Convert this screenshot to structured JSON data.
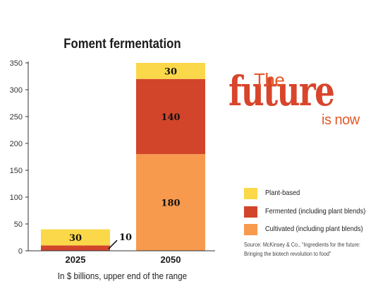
{
  "chart_data": {
    "type": "bar",
    "stacked": true,
    "title": "Foment fermentation",
    "xlabel": "In $ billions, upper end of the range",
    "ylabel": "",
    "categories": [
      "2025",
      "2050"
    ],
    "ylim": [
      0,
      350
    ],
    "yticks": [
      "0",
      "50",
      "100",
      "150",
      "200",
      "250",
      "300",
      "350"
    ],
    "grid": false,
    "legend_position": "right",
    "series": [
      {
        "name": "Cultivated (including plant blends)",
        "color": "#f79a4e",
        "values": [
          0,
          180
        ],
        "labels": [
          "",
          "180"
        ]
      },
      {
        "name": "Fermented (including plant blends)",
        "color": "#d2452b",
        "values": [
          10,
          140
        ],
        "labels": [
          "10",
          "140"
        ]
      },
      {
        "name": "Plant-based",
        "color": "#fbd849",
        "values": [
          30,
          30
        ],
        "labels": [
          "30",
          "30"
        ]
      }
    ],
    "legend_order": [
      "Plant-based",
      "Fermented (including plant blends)",
      "Cultivated (including plant blends)"
    ]
  },
  "brand": {
    "line1": "The",
    "line2": "future",
    "line3": "is now"
  },
  "source": "Source: McKinsey & Co., “Ingredients for the future: Bringing the biotech revolution to food”"
}
